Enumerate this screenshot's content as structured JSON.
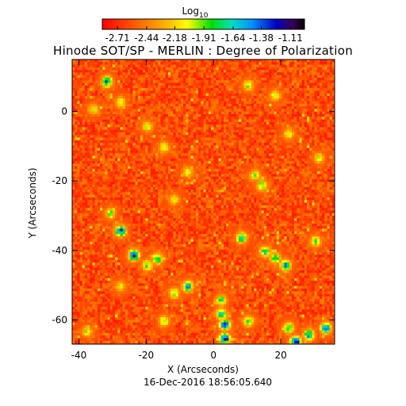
{
  "chart_data": {
    "type": "heatmap",
    "title": "Hinode SOT/SP - MERLIN : Degree of Polarization",
    "xlabel": "X (Arcseconds)",
    "ylabel": "Y (Arcseconds)",
    "timestamp": "16-Dec-2016 18:56:05.640",
    "xlim": [
      -42,
      36
    ],
    "ylim": [
      -67,
      15
    ],
    "x_ticks": [
      -40,
      -20,
      0,
      20
    ],
    "y_ticks": [
      0,
      -20,
      -40,
      -60
    ],
    "colorbar": {
      "label_prefix": "Log",
      "label_sub": "10",
      "range": [
        -2.85,
        -0.98
      ],
      "tick_values": [
        -2.71,
        -2.44,
        -2.18,
        -1.91,
        -1.64,
        -1.38,
        -1.11
      ],
      "tick_labels": [
        "-2.71",
        "-2.44",
        "-2.18",
        "-1.91",
        "-1.64",
        "-1.38",
        "-1.11"
      ]
    },
    "background_level": -2.6,
    "features": [
      {
        "x": -32,
        "y": 9,
        "level": -1.5
      },
      {
        "x": -36,
        "y": 1,
        "level": -2.0
      },
      {
        "x": -28,
        "y": 3,
        "level": -1.95
      },
      {
        "x": 10,
        "y": 8,
        "level": -1.9
      },
      {
        "x": 18,
        "y": 5,
        "level": -1.95
      },
      {
        "x": -20,
        "y": -4,
        "level": -2.0
      },
      {
        "x": -15,
        "y": -10,
        "level": -1.95
      },
      {
        "x": 22,
        "y": -6,
        "level": -2.0
      },
      {
        "x": -8,
        "y": -17,
        "level": -2.05
      },
      {
        "x": 12,
        "y": -18,
        "level": -1.9
      },
      {
        "x": 14,
        "y": -21,
        "level": -1.75
      },
      {
        "x": 31,
        "y": -13,
        "level": -2.0
      },
      {
        "x": -12,
        "y": -25,
        "level": -2.05
      },
      {
        "x": -28,
        "y": -34,
        "level": -1.2
      },
      {
        "x": -31,
        "y": -29,
        "level": -1.9
      },
      {
        "x": -24,
        "y": -41,
        "level": -1.1
      },
      {
        "x": -20,
        "y": -44,
        "level": -1.8
      },
      {
        "x": -17,
        "y": -42,
        "level": -1.6
      },
      {
        "x": 8,
        "y": -36,
        "level": -1.55
      },
      {
        "x": 15,
        "y": -40,
        "level": -1.6
      },
      {
        "x": 18,
        "y": -42,
        "level": -1.7
      },
      {
        "x": 21,
        "y": -44,
        "level": -1.45
      },
      {
        "x": 30,
        "y": -37,
        "level": -1.8
      },
      {
        "x": -8,
        "y": -50,
        "level": -1.45
      },
      {
        "x": -12,
        "y": -52,
        "level": -1.9
      },
      {
        "x": -28,
        "y": -50,
        "level": -2.05
      },
      {
        "x": 2,
        "y": -54,
        "level": -1.75
      },
      {
        "x": 2,
        "y": -58,
        "level": -1.5
      },
      {
        "x": 3,
        "y": -61,
        "level": -1.2
      },
      {
        "x": 3,
        "y": -65,
        "level": -1.1
      },
      {
        "x": 10,
        "y": -60,
        "level": -1.8
      },
      {
        "x": -15,
        "y": -60,
        "level": -1.9
      },
      {
        "x": 22,
        "y": -62,
        "level": -1.7
      },
      {
        "x": 24,
        "y": -66,
        "level": -1.1
      },
      {
        "x": 28,
        "y": -64,
        "level": -1.5
      },
      {
        "x": 33,
        "y": -62,
        "level": -1.3
      },
      {
        "x": -38,
        "y": -63,
        "level": -2.0
      }
    ]
  }
}
